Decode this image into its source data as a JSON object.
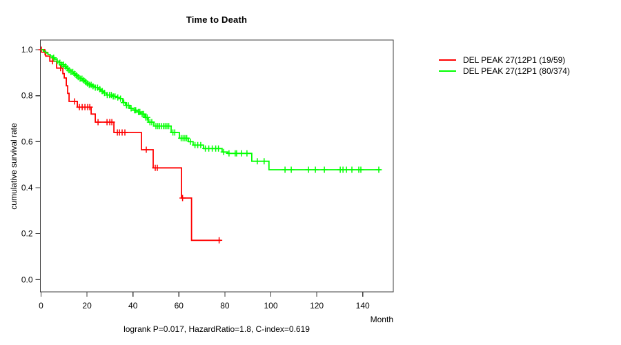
{
  "chart_data": {
    "type": "line",
    "subtype": "kaplan-meier-step",
    "title": "Time to Death",
    "xlabel": "Month",
    "ylabel": "cumulative survival rate",
    "footer": "logrank P=0.017, HazardRatio=1.8, C-index=0.619",
    "x_ticks": [
      0,
      20,
      40,
      60,
      80,
      100,
      120,
      140
    ],
    "y_ticks": [
      "0.0",
      "0.2",
      "0.4",
      "0.6",
      "0.8",
      "1.0"
    ],
    "xlim": [
      0,
      153
    ],
    "ylim": [
      0,
      1
    ],
    "grid": false,
    "legend_position": "right-outside",
    "axis_color": "#3c3c3c",
    "series": [
      {
        "id": "group1",
        "name": "DEL PEAK 27(12P1 (19/59)",
        "events_total": "19/59",
        "color": "#ff0000",
        "steps": [
          [
            0,
            1.0
          ],
          [
            1.4,
            0.989
          ],
          [
            2.0,
            0.972
          ],
          [
            3.8,
            0.95
          ],
          [
            6.8,
            0.92
          ],
          [
            9.5,
            0.896
          ],
          [
            10.1,
            0.877
          ],
          [
            11,
            0.843
          ],
          [
            11.6,
            0.81
          ],
          [
            12.2,
            0.775
          ],
          [
            15.8,
            0.75
          ],
          [
            21.8,
            0.72
          ],
          [
            23.6,
            0.685
          ],
          [
            31.7,
            0.64
          ],
          [
            43.7,
            0.565
          ],
          [
            48.8,
            0.486
          ],
          [
            61.1,
            0.355
          ],
          [
            65.5,
            0.171
          ]
        ],
        "end_month": 78.2,
        "censor_months": [
          0.2,
          1.7,
          5.0,
          8.5,
          14.6,
          16.7,
          17.9,
          19.1,
          20.3,
          21.2,
          24.8,
          28.7,
          29.9,
          30.8,
          33.2,
          34.1,
          35.3,
          36.5,
          45.8,
          49.7,
          50.6,
          61.6,
          77.5
        ]
      },
      {
        "id": "group2",
        "name": "DEL PEAK 27(12P1 (80/374)",
        "events_total": "80/374",
        "color": "#00ff00",
        "steps": [
          [
            0,
            1.0
          ],
          [
            1,
            0.993
          ],
          [
            2,
            0.986
          ],
          [
            3,
            0.979
          ],
          [
            4,
            0.972
          ],
          [
            5,
            0.965
          ],
          [
            6,
            0.958
          ],
          [
            7,
            0.95
          ],
          [
            8,
            0.943
          ],
          [
            9,
            0.935
          ],
          [
            10,
            0.927
          ],
          [
            11,
            0.919
          ],
          [
            12,
            0.911
          ],
          [
            13,
            0.903
          ],
          [
            14,
            0.895
          ],
          [
            15,
            0.888
          ],
          [
            16,
            0.881
          ],
          [
            17,
            0.874
          ],
          [
            18,
            0.867
          ],
          [
            19,
            0.86
          ],
          [
            20,
            0.853
          ],
          [
            21,
            0.847
          ],
          [
            22.4,
            0.841
          ],
          [
            23.6,
            0.835
          ],
          [
            24.8,
            0.828
          ],
          [
            26,
            0.82
          ],
          [
            27.2,
            0.812
          ],
          [
            28.5,
            0.803
          ],
          [
            31,
            0.797
          ],
          [
            33,
            0.792
          ],
          [
            34.2,
            0.787
          ],
          [
            35.6,
            0.77
          ],
          [
            36.8,
            0.758
          ],
          [
            38.6,
            0.745
          ],
          [
            40,
            0.737
          ],
          [
            41.8,
            0.729
          ],
          [
            43.4,
            0.72
          ],
          [
            45.2,
            0.705
          ],
          [
            46.7,
            0.685
          ],
          [
            49.1,
            0.668
          ],
          [
            56.6,
            0.64
          ],
          [
            60.2,
            0.615
          ],
          [
            64.1,
            0.6
          ],
          [
            66.2,
            0.585
          ],
          [
            70.7,
            0.57
          ],
          [
            78.8,
            0.555
          ],
          [
            81.2,
            0.549
          ],
          [
            91.7,
            0.515
          ],
          [
            99.2,
            0.478
          ]
        ],
        "end_month": 147.8,
        "censor_months": [
          5.5,
          7.0,
          8.2,
          9.0,
          9.8,
          10.6,
          11.4,
          12.2,
          13.0,
          13.8,
          14.6,
          15.4,
          16.2,
          17.0,
          17.8,
          18.6,
          19.4,
          20.2,
          21.0,
          21.8,
          22.6,
          23.6,
          24.6,
          25.6,
          26.6,
          27.6,
          28.8,
          29.8,
          30.6,
          31.4,
          32.2,
          33.4,
          34.6,
          36.0,
          37.2,
          38.0,
          39.2,
          40.6,
          41.2,
          42.4,
          43.0,
          44.0,
          44.6,
          45.6,
          46.2,
          47.4,
          48.2,
          50.0,
          50.8,
          51.6,
          52.4,
          53.2,
          54.0,
          54.8,
          55.6,
          57.4,
          58.2,
          61.0,
          61.8,
          62.6,
          63.4,
          65.0,
          67.0,
          68.2,
          69.5,
          71.5,
          73.0,
          74.5,
          76.0,
          77.2,
          79.5,
          81.8,
          84.5,
          85.1,
          87.2,
          89.6,
          94.1,
          97.1,
          106.2,
          108.9,
          116.4,
          119.4,
          123.3,
          130.2,
          131.4,
          132.9,
          135.3,
          138.3,
          139.2,
          147.0
        ]
      }
    ]
  }
}
